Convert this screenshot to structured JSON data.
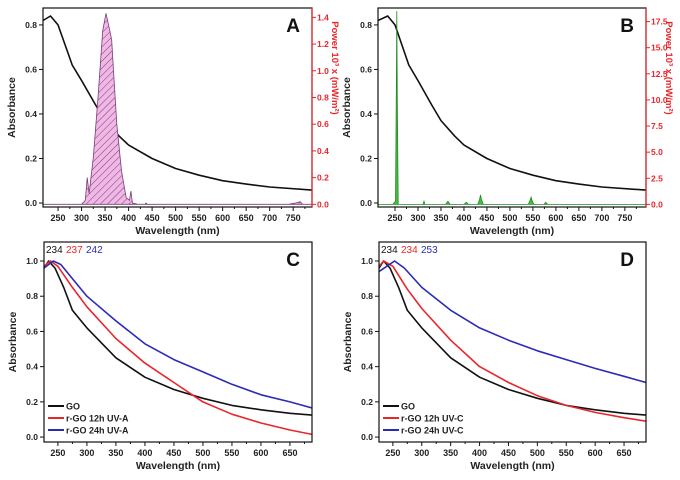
{
  "chart_data": [
    {
      "panel": "A",
      "type": "line",
      "xlabel": "Wavelength (nm)",
      "ylabel": "Absorbance",
      "y2label": "Power 10³ x (mW/m²)",
      "xlim": [
        218,
        790
      ],
      "ylim": [
        -0.018,
        0.876
      ],
      "y2lim": [
        -0.02,
        1.47
      ],
      "xticks": [
        250,
        300,
        350,
        400,
        450,
        500,
        550,
        600,
        650,
        700,
        750
      ],
      "yticks": [
        0.0,
        0.2,
        0.4,
        0.6,
        0.8
      ],
      "ytick_format": 1,
      "y2ticks": [
        0.0,
        0.2,
        0.4,
        0.6,
        0.8,
        1.0,
        1.2,
        1.4
      ],
      "y2tick_format": 1,
      "colors": {
        "y2axis": "#e8262b"
      },
      "series": [
        {
          "axis": "y",
          "color": "#111111",
          "x": [
            218,
            234,
            250,
            270,
            280,
            300,
            330,
            350,
            380,
            400,
            450,
            500,
            550,
            600,
            650,
            700,
            790
          ],
          "y": [
            0.82,
            0.84,
            0.8,
            0.68,
            0.62,
            0.55,
            0.44,
            0.37,
            0.3,
            0.26,
            0.2,
            0.155,
            0.125,
            0.1,
            0.085,
            0.072,
            0.058
          ]
        },
        {
          "axis": "y2",
          "color": "#7a3c78",
          "fill": "#f0b8e4",
          "hatch": true,
          "x": [
            218,
            300,
            308,
            312,
            316,
            325,
            335,
            345,
            352,
            360,
            364,
            368,
            375,
            385,
            395,
            402,
            405,
            408,
            420,
            435,
            437,
            440,
            740,
            755,
            765,
            770,
            790
          ],
          "y": [
            0,
            0,
            0.03,
            0.2,
            0.08,
            0.35,
            0.8,
            1.3,
            1.43,
            1.3,
            1.23,
            1.0,
            0.6,
            0.25,
            0.05,
            0.03,
            0.1,
            0.01,
            0,
            0,
            0.01,
            0,
            0,
            0.01,
            0.02,
            0,
            0
          ]
        }
      ],
      "legend": []
    },
    {
      "panel": "B",
      "type": "line",
      "xlabel": "Wavelength (nm)",
      "ylabel": "Absorbance",
      "y2label": "Power 10³ x (mW/m²)",
      "xlim": [
        213,
        796
      ],
      "ylim": [
        -0.018,
        0.876
      ],
      "y2lim": [
        -0.25,
        18.8
      ],
      "xticks": [
        250,
        300,
        350,
        400,
        450,
        500,
        550,
        600,
        650,
        700,
        750
      ],
      "yticks": [
        0.0,
        0.2,
        0.4,
        0.6,
        0.8
      ],
      "ytick_format": 1,
      "y2ticks": [
        0.0,
        2.5,
        5.0,
        7.5,
        10.0,
        12.5,
        15.0,
        17.5
      ],
      "y2tick_format": 1,
      "colors": {
        "y2axis": "#e8262b"
      },
      "series": [
        {
          "axis": "y",
          "color": "#111111",
          "x": [
            213,
            234,
            250,
            270,
            280,
            300,
            330,
            350,
            380,
            400,
            450,
            500,
            550,
            600,
            650,
            700,
            796
          ],
          "y": [
            0.82,
            0.84,
            0.8,
            0.68,
            0.62,
            0.55,
            0.44,
            0.37,
            0.3,
            0.26,
            0.2,
            0.155,
            0.125,
            0.1,
            0.085,
            0.072,
            0.058
          ]
        },
        {
          "axis": "y2",
          "color": "#1f8a1f",
          "fill": "#3fc13f",
          "hatch": false,
          "x": [
            213,
            245,
            251,
            253,
            254,
            255,
            257,
            300,
            311,
            313,
            315,
            360,
            365,
            370,
            400,
            405,
            410,
            430,
            434,
            436,
            438,
            442,
            540,
            544,
            546,
            548,
            552,
            574,
            578,
            582,
            796
          ],
          "y": [
            0,
            0,
            0.3,
            12,
            18.5,
            10,
            0,
            0,
            0,
            0.3,
            0,
            0,
            0.3,
            0,
            0,
            0.2,
            0,
            0,
            0.5,
            0.9,
            0.5,
            0,
            0,
            0.4,
            0.7,
            0.4,
            0,
            0,
            0.2,
            0,
            0
          ]
        }
      ],
      "legend": []
    },
    {
      "panel": "C",
      "type": "line",
      "xlabel": "Wavelength (nm)",
      "ylabel": "Absorbance",
      "xlim": [
        226,
        688
      ],
      "ylim": [
        -0.028,
        1.108
      ],
      "xticks": [
        250,
        300,
        350,
        400,
        450,
        500,
        550,
        600,
        650
      ],
      "yticks": [
        0.0,
        0.2,
        0.4,
        0.6,
        0.8,
        1.0
      ],
      "ytick_format": 1,
      "peak_labels": [
        {
          "text": "234",
          "color": "#111111"
        },
        {
          "text": "237",
          "color": "#e8262b"
        },
        {
          "text": "242",
          "color": "#2b2bb8"
        }
      ],
      "series": [
        {
          "name": "GO",
          "axis": "y",
          "color": "#111111",
          "x": [
            226,
            234,
            245,
            260,
            275,
            290,
            300,
            350,
            400,
            450,
            500,
            550,
            600,
            650,
            688
          ],
          "y": [
            0.96,
            1.0,
            0.96,
            0.85,
            0.72,
            0.66,
            0.62,
            0.45,
            0.34,
            0.27,
            0.22,
            0.18,
            0.155,
            0.135,
            0.125
          ]
        },
        {
          "name": "r-GO 12h UV-A",
          "axis": "y",
          "color": "#e8262b",
          "x": [
            226,
            237,
            250,
            275,
            300,
            350,
            400,
            450,
            500,
            550,
            600,
            650,
            688
          ],
          "y": [
            0.97,
            1.0,
            0.97,
            0.85,
            0.74,
            0.56,
            0.42,
            0.31,
            0.2,
            0.13,
            0.08,
            0.04,
            0.015
          ]
        },
        {
          "name": "r-GO 24h UV-A",
          "axis": "y",
          "color": "#2b2bb8",
          "x": [
            226,
            242,
            255,
            275,
            300,
            350,
            400,
            450,
            500,
            550,
            600,
            650,
            688
          ],
          "y": [
            0.96,
            1.0,
            0.98,
            0.9,
            0.8,
            0.66,
            0.53,
            0.44,
            0.37,
            0.3,
            0.24,
            0.2,
            0.165
          ]
        }
      ],
      "legend": "bottom-left"
    },
    {
      "panel": "D",
      "type": "line",
      "xlabel": "Wavelength (nm)",
      "ylabel": "Absorbance",
      "xlim": [
        226,
        688
      ],
      "ylim": [
        -0.028,
        1.108
      ],
      "xticks": [
        250,
        300,
        350,
        400,
        450,
        500,
        550,
        600,
        650
      ],
      "yticks": [
        0.0,
        0.2,
        0.4,
        0.6,
        0.8,
        1.0
      ],
      "ytick_format": 1,
      "peak_labels": [
        {
          "text": "234",
          "color": "#111111"
        },
        {
          "text": "234",
          "color": "#e8262b"
        },
        {
          "text": "253",
          "color": "#2b2bb8"
        }
      ],
      "series": [
        {
          "name": "GO",
          "axis": "y",
          "color": "#111111",
          "x": [
            226,
            234,
            245,
            260,
            275,
            290,
            300,
            350,
            400,
            450,
            500,
            550,
            600,
            650,
            688
          ],
          "y": [
            0.96,
            1.0,
            0.96,
            0.85,
            0.72,
            0.66,
            0.62,
            0.45,
            0.34,
            0.27,
            0.22,
            0.18,
            0.155,
            0.135,
            0.125
          ]
        },
        {
          "name": "r-GO 12h UV-C",
          "axis": "y",
          "color": "#e8262b",
          "x": [
            226,
            234,
            250,
            275,
            300,
            350,
            400,
            450,
            500,
            550,
            600,
            650,
            688
          ],
          "y": [
            0.97,
            1.0,
            0.97,
            0.84,
            0.73,
            0.55,
            0.4,
            0.31,
            0.235,
            0.18,
            0.14,
            0.11,
            0.09
          ]
        },
        {
          "name": "r-GO 24h UV-C",
          "axis": "y",
          "color": "#2b2bb8",
          "x": [
            226,
            253,
            270,
            300,
            350,
            400,
            450,
            500,
            550,
            600,
            650,
            688
          ],
          "y": [
            0.94,
            1.0,
            0.96,
            0.85,
            0.72,
            0.62,
            0.55,
            0.49,
            0.44,
            0.39,
            0.345,
            0.31
          ]
        }
      ],
      "legend": "bottom-left"
    }
  ]
}
